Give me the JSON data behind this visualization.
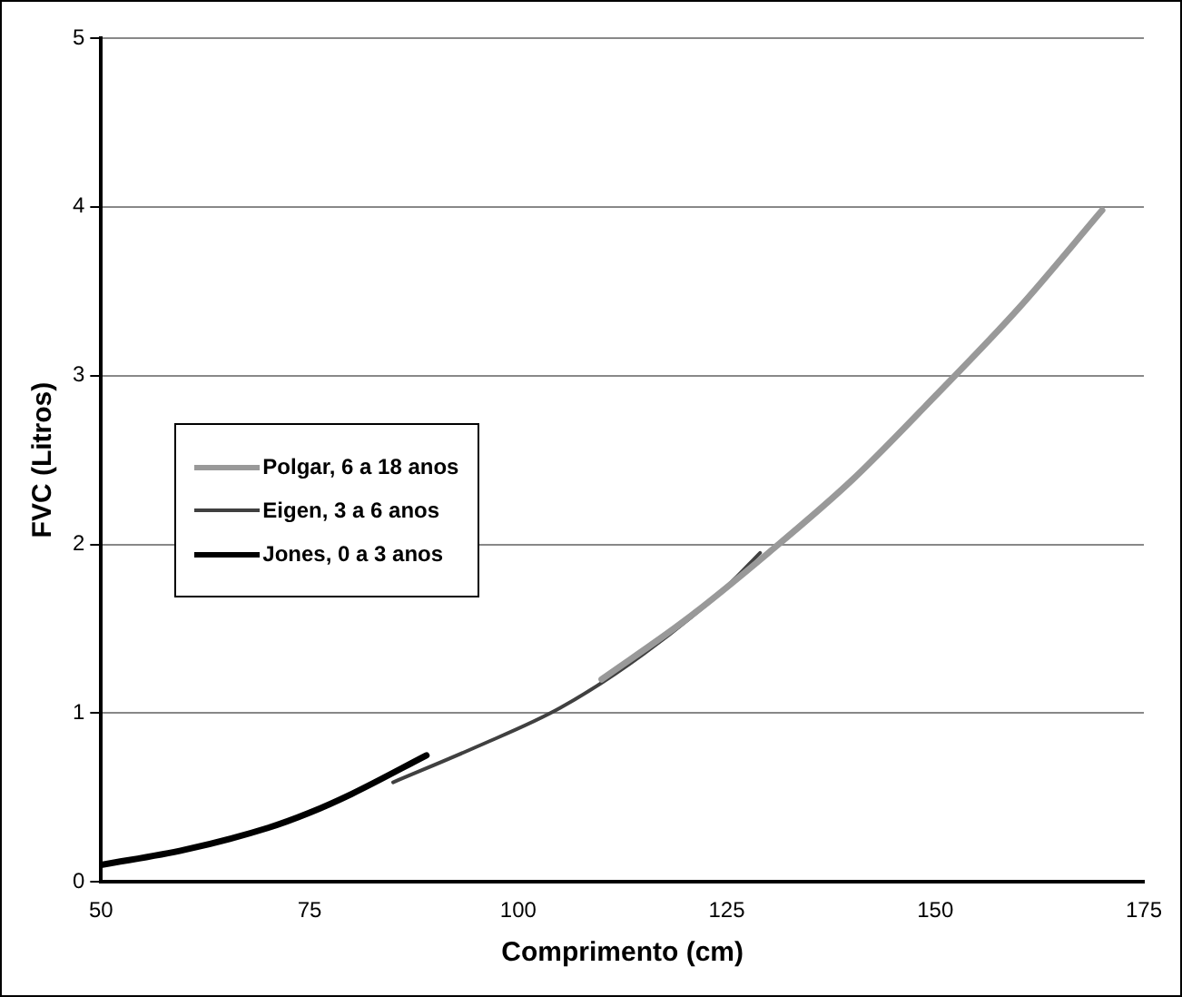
{
  "chart_data": {
    "type": "line",
    "xlabel": "Comprimento (cm)",
    "ylabel": "FVC (Litros)",
    "xlim": [
      50,
      175
    ],
    "xticks": [
      50,
      75,
      100,
      125,
      150,
      175
    ],
    "ylim": [
      0,
      5
    ],
    "yticks": [
      0,
      1,
      2,
      3,
      4,
      5
    ],
    "grid": "y",
    "legend": "center left",
    "marker": "none",
    "line_style": "solid",
    "series": [
      {
        "name": "Polgar,  6 a 18 anos",
        "color": "#999999",
        "x": [
          110,
          120,
          130,
          140,
          150,
          160,
          170
        ],
        "values": [
          1.2,
          1.55,
          1.95,
          2.38,
          2.88,
          3.4,
          3.98
        ]
      },
      {
        "name": "Eigen,  3 a 6 anos",
        "color": "#404040",
        "x": [
          85,
          95,
          105,
          115,
          125,
          129
        ],
        "values": [
          0.59,
          0.8,
          1.03,
          1.35,
          1.75,
          1.95
        ]
      },
      {
        "name": "Jones, 0 a 3 anos",
        "color": "#000000",
        "x": [
          50,
          60,
          70,
          75,
          80,
          89
        ],
        "values": [
          0.1,
          0.19,
          0.32,
          0.41,
          0.52,
          0.75
        ]
      }
    ]
  }
}
